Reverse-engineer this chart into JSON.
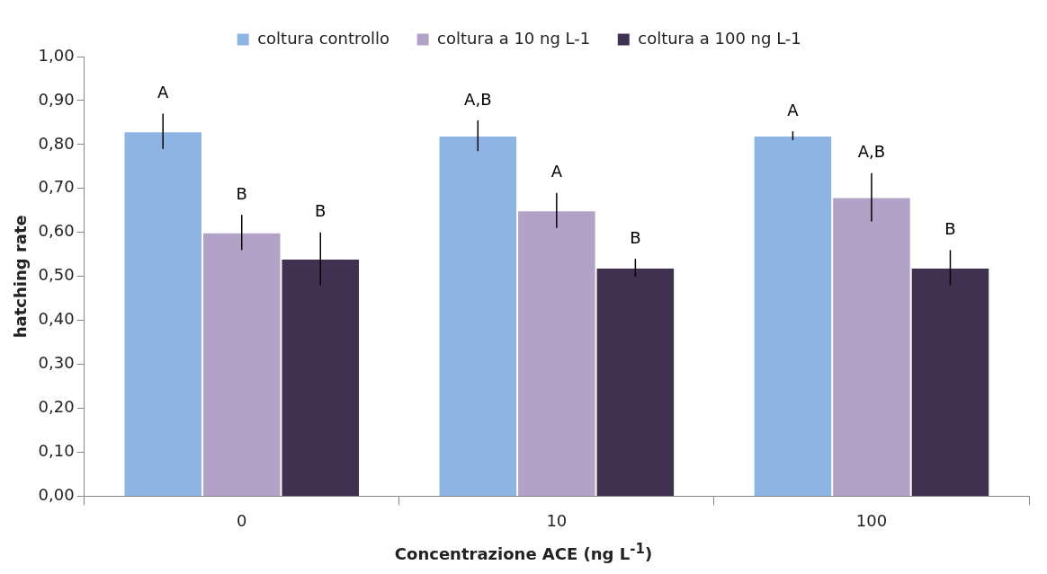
{
  "chart_data": {
    "type": "bar",
    "xlabel": "Concentrazione ACE (ng L$^{-1}$)",
    "ylabel": "hatching rate",
    "categories": [
      "0",
      "10",
      "100"
    ],
    "series": [
      {
        "name": "coltura controllo",
        "color": "#8eb4e3",
        "values": [
          0.83,
          0.82,
          0.82
        ],
        "errors": [
          0.04,
          0.035,
          0.01
        ]
      },
      {
        "name": "coltura a 10 ng L-1",
        "color": "#b3a2c7",
        "values": [
          0.6,
          0.65,
          0.68
        ],
        "errors": [
          0.04,
          0.04,
          0.055
        ]
      },
      {
        "name": "coltura a 100 ng L-1",
        "color": "#403151",
        "values": [
          0.54,
          0.52,
          0.52
        ],
        "errors": [
          0.06,
          0.02,
          0.04
        ]
      }
    ],
    "ylim": [
      0,
      1
    ],
    "yticks": [
      {
        "value": 0,
        "label": "0,00"
      },
      {
        "value": 0.1,
        "label": "0,10"
      },
      {
        "value": 0.2,
        "label": "0,20"
      },
      {
        "value": 0.3,
        "label": "0,30"
      },
      {
        "value": 0.4,
        "label": "0,40"
      },
      {
        "value": 0.5,
        "label": "0,50"
      },
      {
        "value": 0.6,
        "label": "0,60"
      },
      {
        "value": 0.7,
        "label": "0,70"
      },
      {
        "value": 0.8,
        "label": "0,80"
      },
      {
        "value": 0.9,
        "label": "0,90"
      },
      {
        "value": 1,
        "label": "1,00"
      }
    ],
    "annotations": [
      "A",
      "B",
      "B",
      "A,B",
      "A",
      "B",
      "A",
      "A,B",
      "B"
    ],
    "grid": false,
    "legend": "top"
  }
}
